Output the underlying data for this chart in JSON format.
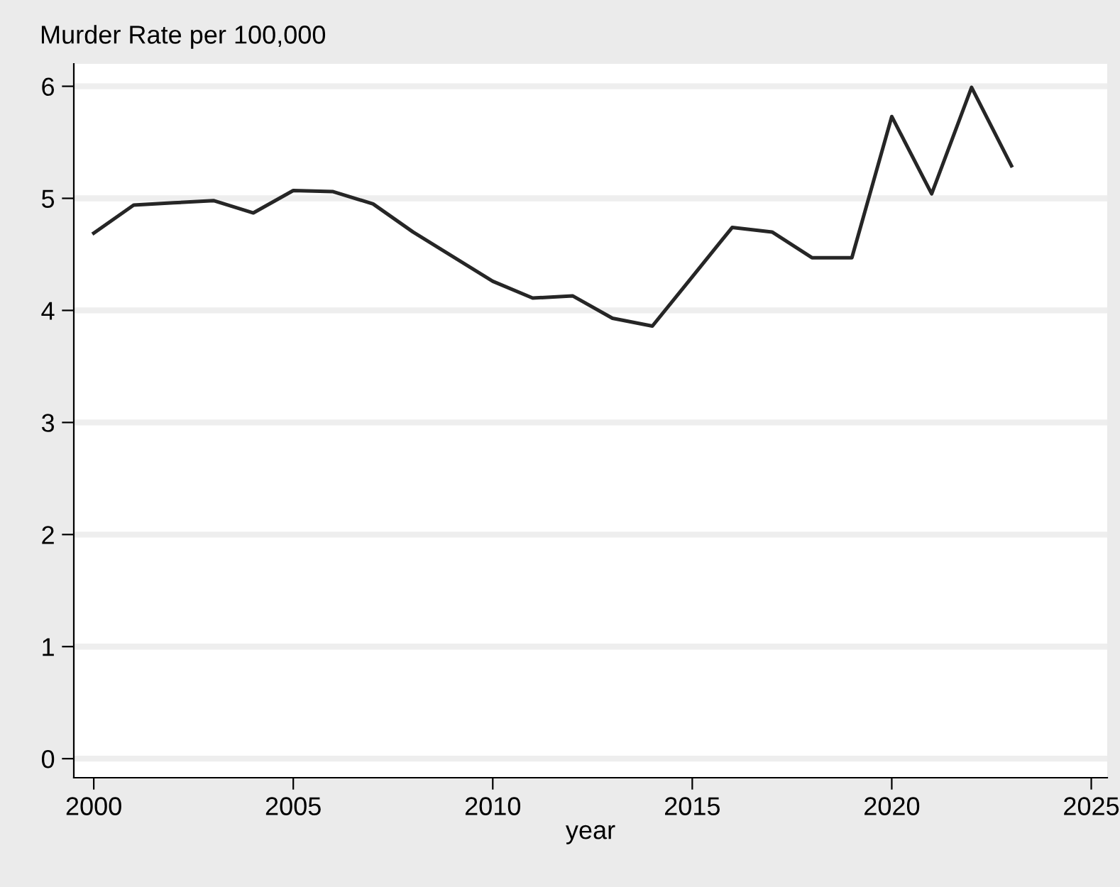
{
  "chart_data": {
    "type": "line",
    "ylabel": "Murder Rate per 100,000",
    "xlabel": "year",
    "x": [
      2000,
      2001,
      2002,
      2003,
      2004,
      2005,
      2006,
      2007,
      2008,
      2009,
      2010,
      2011,
      2012,
      2013,
      2014,
      2015,
      2016,
      2017,
      2018,
      2019,
      2020,
      2021,
      2022,
      2023
    ],
    "series": [
      {
        "color": "#262626",
        "values": [
          4.69,
          4.94,
          4.96,
          4.98,
          4.87,
          5.07,
          5.06,
          4.95,
          4.7,
          4.48,
          4.26,
          4.11,
          4.13,
          3.93,
          3.86,
          4.3,
          4.74,
          4.7,
          4.47,
          4.47,
          5.73,
          5.04,
          5.99,
          5.29
        ]
      }
    ],
    "xlim": [
      1999.5,
      2025.4
    ],
    "xticks": [
      2000,
      2005,
      2010,
      2015,
      2020,
      2025
    ],
    "ylim": [
      -0.17,
      6.2
    ],
    "yticks": [
      0,
      1,
      2,
      3,
      4,
      5,
      6
    ],
    "grid": "y",
    "marker": "none",
    "line_style": "solid"
  }
}
